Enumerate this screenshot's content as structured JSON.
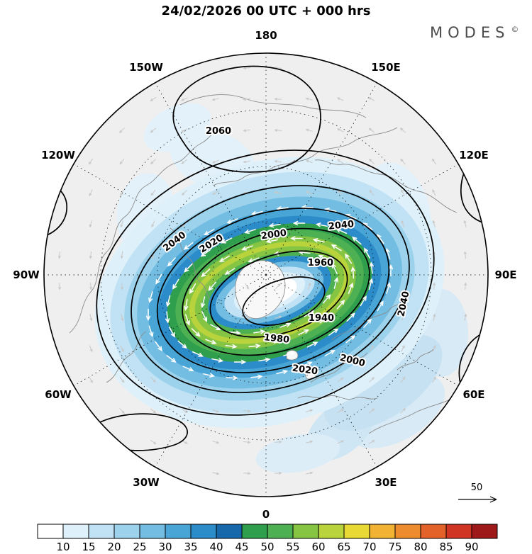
{
  "header": {
    "title": "24/02/2026  00 UTC  + 000 hrs",
    "brand": "MODES",
    "brand_symbol": "©"
  },
  "chart_data": {
    "type": "heatmap",
    "title": "24/02/2026 00 UTC + 000 hrs",
    "projection": "north-polar-stereographic",
    "longitude_labels": [
      {
        "label": "180",
        "azimuth_deg": 0
      },
      {
        "label": "150E",
        "azimuth_deg": 30
      },
      {
        "label": "120E",
        "azimuth_deg": 60
      },
      {
        "label": "90E",
        "azimuth_deg": 90
      },
      {
        "label": "60E",
        "azimuth_deg": 120
      },
      {
        "label": "30E",
        "azimuth_deg": 150
      },
      {
        "label": "0",
        "azimuth_deg": 180
      },
      {
        "label": "30W",
        "azimuth_deg": 210
      },
      {
        "label": "60W",
        "azimuth_deg": 240
      },
      {
        "label": "90W",
        "azimuth_deg": 270
      },
      {
        "label": "120W",
        "azimuth_deg": 300
      },
      {
        "label": "150W",
        "azimuth_deg": 330
      }
    ],
    "graticule": {
      "latitude_circles": 3,
      "meridian_step_deg": 30
    },
    "contours": {
      "levels": [
        1940,
        1960,
        1980,
        2000,
        2020,
        2040,
        2060
      ],
      "interval": 20
    },
    "colorbar": {
      "ticks": [
        10,
        15,
        20,
        25,
        30,
        35,
        40,
        45,
        50,
        55,
        60,
        65,
        70,
        75,
        80,
        85,
        90
      ],
      "colors": [
        "#ffffff",
        "#def0f9",
        "#c0e2f4",
        "#9cd2ec",
        "#73bde2",
        "#4aa5d7",
        "#2b8cc9",
        "#1668ab",
        "#2f9e4d",
        "#4db052",
        "#86c443",
        "#b8d33c",
        "#e8d934",
        "#f2b233",
        "#ec8c2e",
        "#e2622a",
        "#d03423",
        "#9e1a1a"
      ]
    },
    "reference_vector": {
      "label": "50"
    },
    "legend_position": "bottom",
    "vector_color_strong": "#ffffff",
    "vector_color_weak": "#c8c8c8"
  }
}
